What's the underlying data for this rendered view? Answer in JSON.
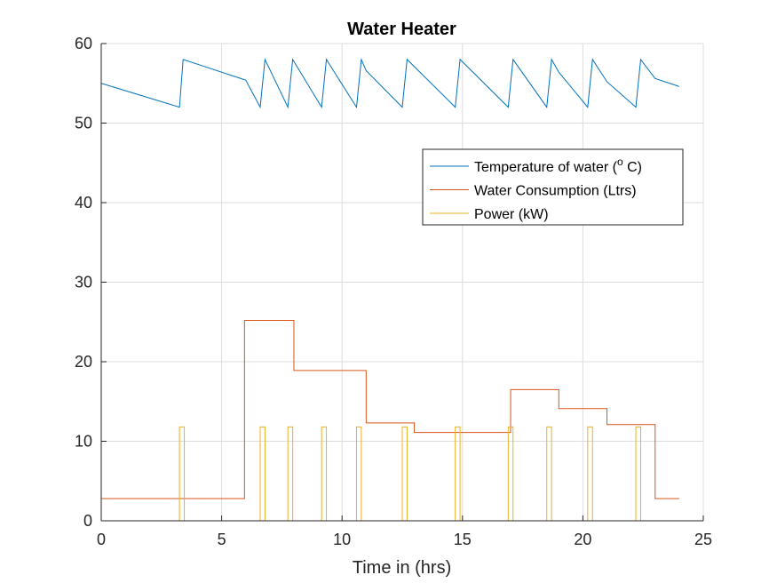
{
  "chart_data": {
    "type": "line",
    "title": "Water Heater",
    "xlabel": "Time in (hrs)",
    "ylabel": "",
    "xlim": [
      0,
      25
    ],
    "ylim": [
      0,
      60
    ],
    "xticks": [
      0,
      5,
      10,
      15,
      20,
      25
    ],
    "yticks": [
      0,
      10,
      20,
      30,
      40,
      50,
      60
    ],
    "grid": true,
    "legend_position": "upper-right inside",
    "series": [
      {
        "name": "Temperature of water (",
        "name_sup": "o",
        "name_suffix": " C)",
        "color": "#0072BD",
        "x": [
          0,
          3.25,
          3.4,
          6,
          6.6,
          6.8,
          7.75,
          7.95,
          9.15,
          9.35,
          10.6,
          10.8,
          11,
          12.5,
          12.7,
          14.7,
          14.9,
          16.9,
          17.1,
          18.5,
          18.7,
          19,
          20.2,
          20.4,
          21,
          22.2,
          22.4,
          23,
          24
        ],
        "y": [
          55,
          52,
          58,
          55.4,
          52,
          58,
          52,
          58,
          52,
          58,
          52,
          58,
          56.6,
          52,
          58,
          52,
          58,
          52,
          58,
          52,
          58,
          56.4,
          52,
          58,
          55.2,
          52,
          58,
          55.6,
          54.6
        ]
      },
      {
        "name": "Water Consumption (Ltrs)",
        "color": "#D95319",
        "x": [
          0,
          5.95,
          5.95,
          8,
          8,
          11,
          11,
          13,
          13,
          17,
          17,
          19,
          19,
          21,
          21,
          23,
          23,
          24
        ],
        "y": [
          2.8,
          2.8,
          25.2,
          25.2,
          18.9,
          18.9,
          12.3,
          12.3,
          11.1,
          11.1,
          16.5,
          16.5,
          14.1,
          14.1,
          12.1,
          12.1,
          2.8,
          2.8
        ]
      },
      {
        "name": "Power (kW)",
        "color": "#EDB120",
        "pulse_level": 11.8,
        "pulse_width": 0.2,
        "pulse_starts": [
          3.25,
          6.6,
          7.75,
          9.15,
          10.6,
          12.5,
          14.7,
          16.9,
          18.5,
          20.2,
          22.2
        ],
        "x_end": 24
      }
    ]
  }
}
